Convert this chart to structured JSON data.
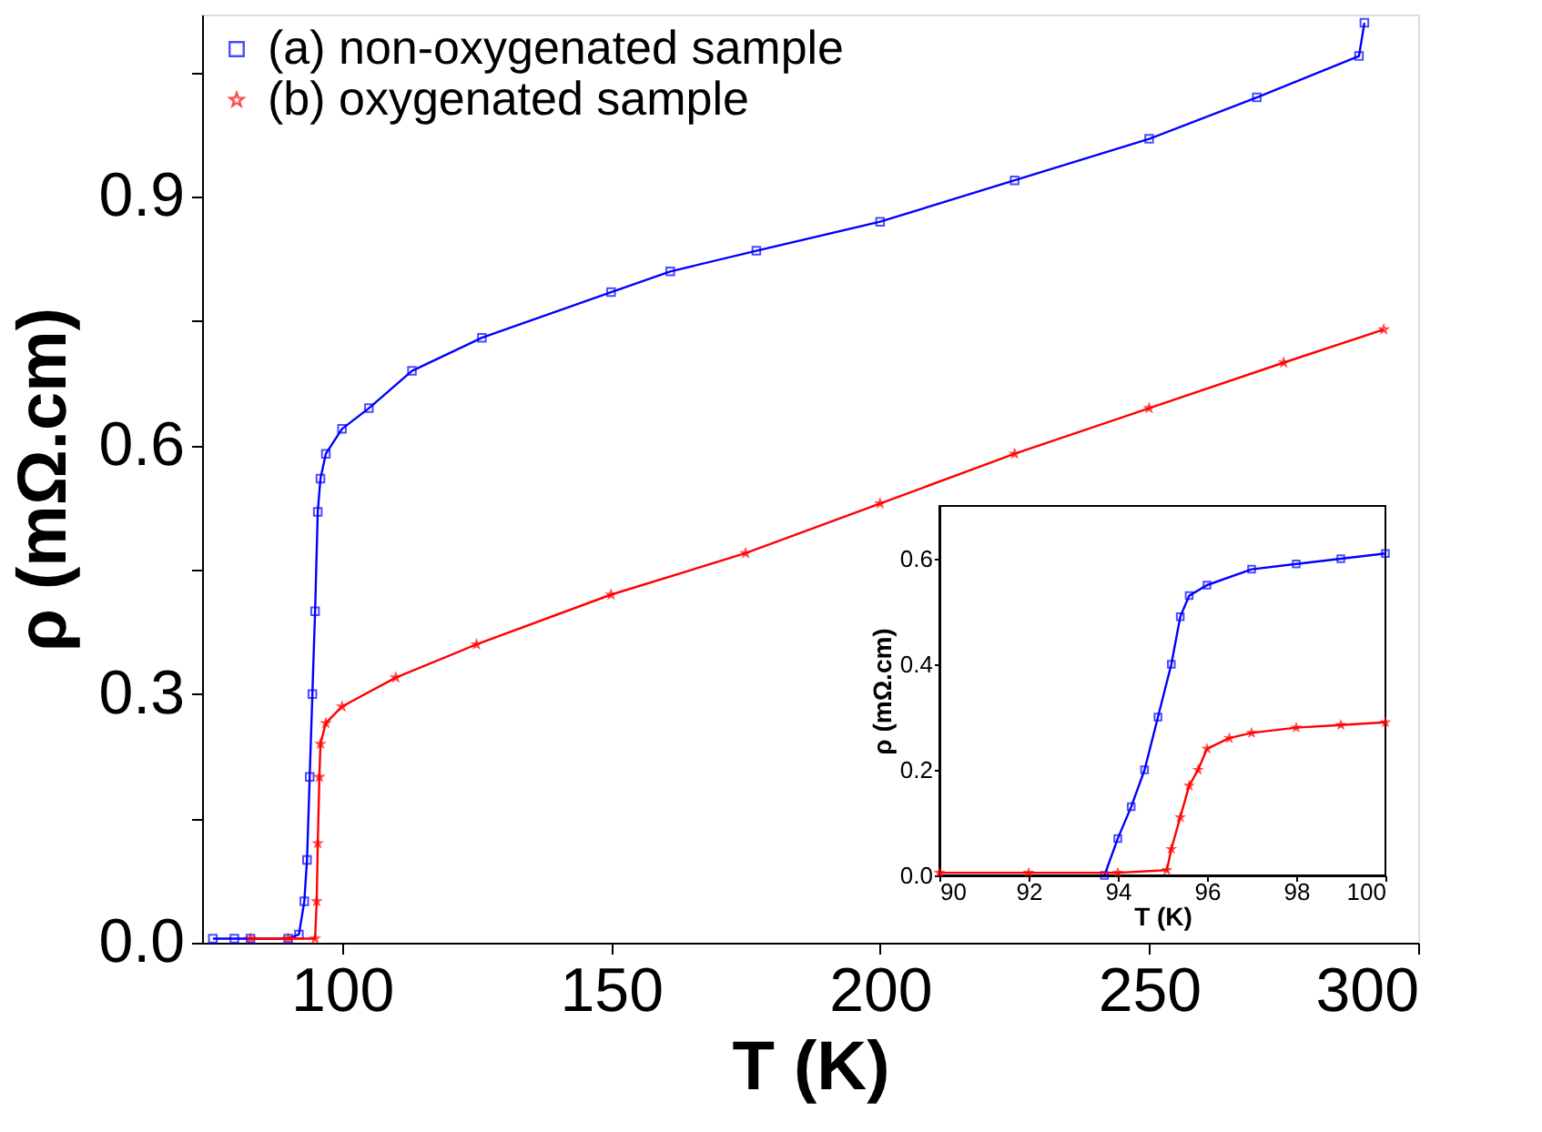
{
  "chart_data": [
    {
      "type": "line",
      "xlabel": "T (K)",
      "ylabel": "ρ (mΩ.cm)",
      "xlim": [
        74,
        300
      ],
      "ylim": [
        0,
        1.12
      ],
      "xticks": [
        100,
        150,
        200,
        250,
        300
      ],
      "yticks": [
        {
          "value": 0,
          "label": "0.0"
        },
        {
          "value": 0.15,
          "label": null
        },
        0.3,
        {
          "value": 0.45,
          "label": null
        },
        0.6,
        {
          "value": 0.75,
          "label": null
        },
        0.9,
        {
          "value": 1.05,
          "label": null
        }
      ],
      "legend": "top left",
      "grid": false,
      "line_style": "solid",
      "series": [
        {
          "name": "(a) non-oxygenated sample",
          "color": "#0000ff",
          "marker": "square",
          "x": [
            76,
            80,
            83,
            90,
            92,
            93,
            93.5,
            94,
            94.5,
            95,
            95.5,
            96,
            97,
            100,
            105,
            113,
            126,
            150,
            161,
            177,
            200,
            225,
            250,
            270,
            289,
            290
          ],
          "values": [
            0.005,
            0.005,
            0.005,
            0.005,
            0.01,
            0.05,
            0.1,
            0.2,
            0.3,
            0.4,
            0.52,
            0.56,
            0.59,
            0.62,
            0.645,
            0.69,
            0.73,
            0.785,
            0.81,
            0.835,
            0.87,
            0.92,
            0.97,
            1.02,
            1.07,
            1.11
          ]
        },
        {
          "name": "(b) oxygenated sample",
          "color": "#ff0000",
          "marker": "star",
          "x": [
            83,
            90,
            95,
            95.3,
            95.5,
            95.8,
            96,
            97,
            100,
            110,
            125,
            150,
            175,
            200,
            225,
            250,
            275,
            293.6
          ],
          "values": [
            0.005,
            0.005,
            0.005,
            0.05,
            0.12,
            0.2,
            0.24,
            0.265,
            0.285,
            0.32,
            0.36,
            0.42,
            0.47,
            0.53,
            0.59,
            0.645,
            0.7,
            0.74
          ]
        }
      ]
    },
    {
      "type": "line",
      "xlabel": "T (K)",
      "ylabel": "ρ (mΩ.cm)",
      "xlim": [
        90,
        100
      ],
      "ylim": [
        0,
        0.7
      ],
      "xticks": [
        90,
        92,
        94,
        96,
        98,
        100
      ],
      "yticks": [
        {
          "value": 0,
          "label": "0.0"
        },
        0.2,
        0.4,
        0.6
      ],
      "grid": false,
      "line_style": "solid",
      "series": [
        {
          "color": "#0000ff",
          "marker": "square",
          "x": [
            93.7,
            94,
            94.3,
            94.6,
            94.9,
            95.2,
            95.4,
            95.6,
            96,
            97,
            98,
            99,
            100
          ],
          "values": [
            0.0,
            0.07,
            0.13,
            0.2,
            0.3,
            0.4,
            0.49,
            0.53,
            0.55,
            0.58,
            0.59,
            0.6,
            0.61
          ]
        },
        {
          "color": "#ff0000",
          "marker": "star",
          "x": [
            90,
            92,
            94,
            95.1,
            95.2,
            95.4,
            95.6,
            95.8,
            96,
            96.5,
            97,
            98,
            99,
            100
          ],
          "values": [
            0.005,
            0.005,
            0.005,
            0.01,
            0.05,
            0.11,
            0.17,
            0.2,
            0.24,
            0.26,
            0.27,
            0.28,
            0.285,
            0.29
          ]
        }
      ]
    }
  ]
}
